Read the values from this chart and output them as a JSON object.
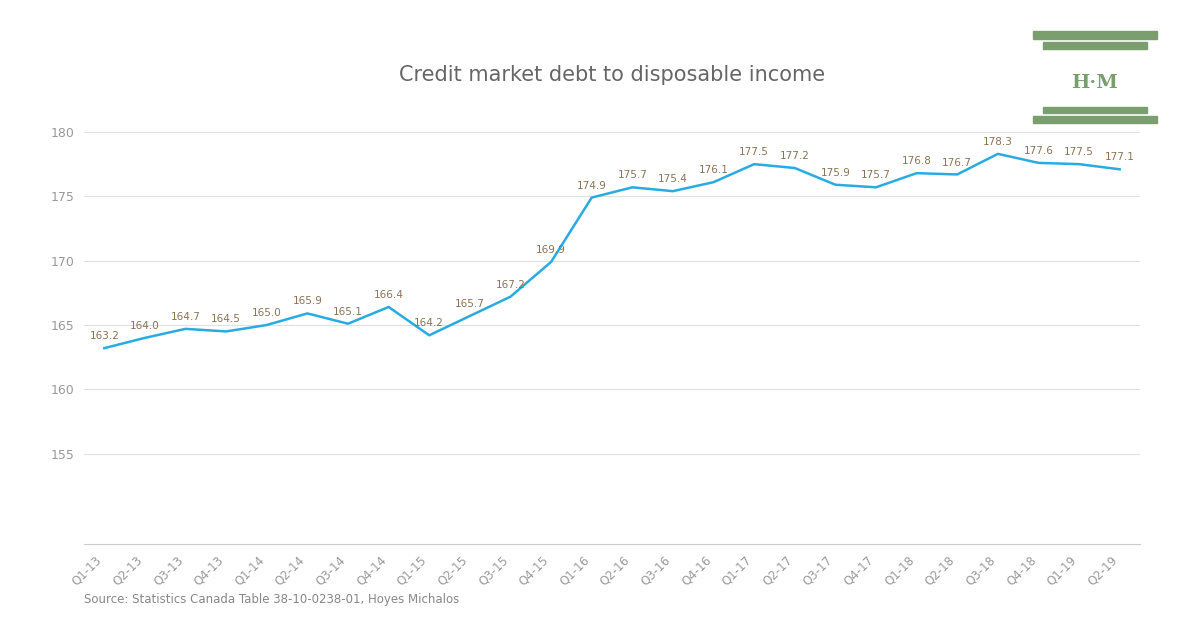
{
  "title": "Credit market debt to disposable income",
  "labels": [
    "Q1-13",
    "Q2-13",
    "Q3-13",
    "Q4-13",
    "Q1-14",
    "Q2-14",
    "Q3-14",
    "Q4-14",
    "Q1-15",
    "Q2-15",
    "Q3-15",
    "Q4-15",
    "Q1-16",
    "Q2-16",
    "Q3-16",
    "Q4-16",
    "Q1-17",
    "Q2-17",
    "Q3-17",
    "Q4-17",
    "Q1-18",
    "Q2-18",
    "Q3-18",
    "Q4-18",
    "Q1-19",
    "Q2-19"
  ],
  "values": [
    163.2,
    164.0,
    164.7,
    164.5,
    165.0,
    165.9,
    165.1,
    166.4,
    164.2,
    165.7,
    167.2,
    169.9,
    174.9,
    175.7,
    175.4,
    176.1,
    177.5,
    177.2,
    175.9,
    175.7,
    176.8,
    176.7,
    178.3,
    177.6,
    177.5,
    177.1
  ],
  "line_color": "#29abe2",
  "label_color": "#8B7355",
  "title_color": "#666666",
  "tick_color": "#999999",
  "source_text": "Source: Statistics Canada Table 38-10-0238-01, Hoyes Michalos",
  "ylim_min": 148,
  "ylim_max": 182,
  "yticks": [
    155,
    160,
    165,
    170,
    175,
    180
  ],
  "hm_color": "#7a9e6e",
  "bg_color": "#ffffff",
  "grid_color": "#e0e0e0"
}
